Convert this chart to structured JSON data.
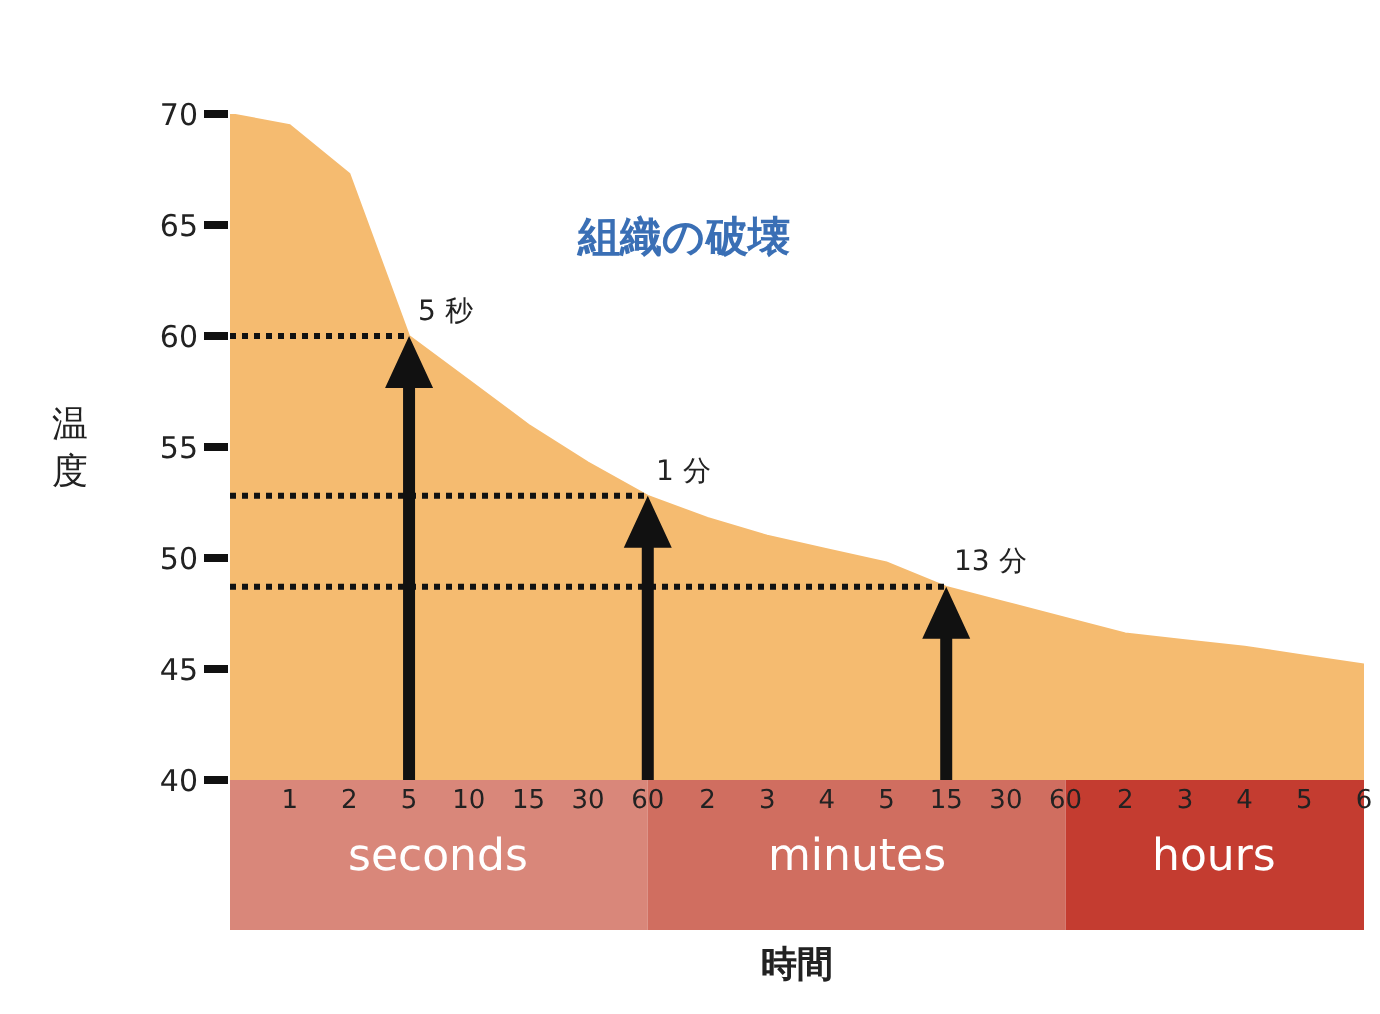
{
  "chart_data": {
    "type": "area",
    "title": "組織の破壊",
    "xlabel": "時間",
    "ylabel": "温度",
    "categories": [
      null,
      "1",
      "2",
      "5",
      "10",
      "15",
      "30",
      "60",
      "2",
      "3",
      "4",
      "5",
      "15",
      "30",
      "60",
      "2",
      "3",
      "4",
      "5",
      "6"
    ],
    "series": [
      {
        "color": "#f5bb70",
        "values": [
          70,
          69.5,
          67.3,
          60.0,
          58.0,
          56.0,
          54.3,
          52.8,
          51.8,
          51.0,
          50.4,
          49.8,
          48.7,
          48.0,
          47.3,
          46.6,
          46.3,
          46.0,
          45.6,
          45.2
        ]
      }
    ],
    "ylim": [
      40,
      70
    ],
    "yticks": [
      40,
      45,
      50,
      55,
      60,
      65,
      70
    ],
    "ref_lines": [
      {
        "axis": "y",
        "value": 60,
        "label": "5 秒",
        "color": "#111111",
        "line_style": "dotted"
      },
      {
        "axis": "y",
        "value": 52.8,
        "label": "1 分",
        "color": "#111111",
        "line_style": "dotted"
      },
      {
        "axis": "y",
        "value": 48.7,
        "label": "13 分",
        "color": "#111111",
        "line_style": "dotted"
      }
    ],
    "annotations": [
      "seconds",
      "minutes",
      "hours"
    ]
  }
}
